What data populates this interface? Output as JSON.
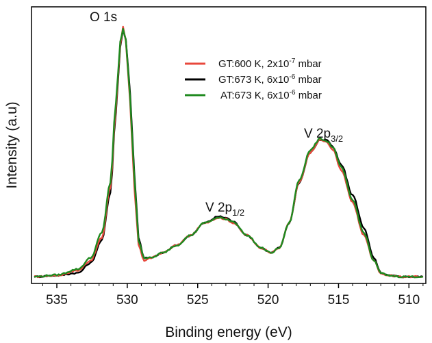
{
  "chart_data": {
    "type": "line",
    "title": "",
    "xlabel": "Binding energy (eV)",
    "ylabel": "Intensity (a.u)",
    "xlim": [
      536.8,
      508.8
    ],
    "ylim": [
      0,
      1.08
    ],
    "x_reversed": true,
    "x_ticks": [
      535,
      530,
      525,
      520,
      515,
      510
    ],
    "x_tick_labels": [
      "535",
      "530",
      "525",
      "520",
      "515",
      "510"
    ],
    "grid": false,
    "legend_position": "upper-middle",
    "annotations": [
      {
        "text": "O 1s",
        "x": 533.0,
        "y": 0.99
      },
      {
        "text": "V 2p",
        "sub": "1/2",
        "x": 523.0,
        "y": 0.27
      },
      {
        "text": "V 2p",
        "sub": "3/2",
        "x": 515.6,
        "y": 0.55
      }
    ],
    "series": [
      {
        "name": "GT:600 K, 2x10",
        "sup": "-7",
        "unit": " mbar",
        "color": "#e8483c",
        "x": [
          536.6,
          535.0,
          533.5,
          532.6,
          531.8,
          531.2,
          530.8,
          530.5,
          530.3,
          530.1,
          529.8,
          529.5,
          529.2,
          528.8,
          528.3,
          527.5,
          526.5,
          525.5,
          524.5,
          523.5,
          523.0,
          522.5,
          521.5,
          520.5,
          519.8,
          519.2,
          518.5,
          517.8,
          517.0,
          516.3,
          515.8,
          515.4,
          514.8,
          514.0,
          513.2,
          512.5,
          512.0,
          511.5,
          510.5,
          509.5,
          509.0
        ],
        "values": [
          0.005,
          0.01,
          0.03,
          0.07,
          0.16,
          0.36,
          0.68,
          0.93,
          1.0,
          0.94,
          0.7,
          0.36,
          0.13,
          0.07,
          0.08,
          0.1,
          0.13,
          0.17,
          0.22,
          0.24,
          0.235,
          0.22,
          0.17,
          0.12,
          0.1,
          0.12,
          0.22,
          0.38,
          0.5,
          0.55,
          0.54,
          0.51,
          0.43,
          0.3,
          0.17,
          0.07,
          0.02,
          0.01,
          0.005,
          0.005,
          0.005
        ]
      },
      {
        "name": "GT:673 K, 6x10",
        "sup": "-6",
        "unit": " mbar",
        "color": "#000000",
        "x": [
          536.6,
          535.0,
          533.5,
          532.6,
          531.8,
          531.2,
          530.8,
          530.5,
          530.3,
          530.1,
          529.8,
          529.5,
          529.2,
          528.8,
          528.3,
          527.5,
          526.5,
          525.5,
          524.5,
          523.5,
          523.0,
          522.5,
          521.5,
          520.5,
          519.8,
          519.2,
          518.5,
          517.8,
          517.0,
          516.3,
          515.8,
          515.4,
          514.8,
          514.0,
          513.2,
          512.5,
          512.0,
          511.5,
          510.5,
          509.5,
          509.0
        ],
        "values": [
          0.005,
          0.01,
          0.02,
          0.06,
          0.15,
          0.34,
          0.66,
          0.92,
          0.99,
          0.95,
          0.74,
          0.42,
          0.16,
          0.08,
          0.08,
          0.1,
          0.13,
          0.17,
          0.22,
          0.245,
          0.24,
          0.225,
          0.17,
          0.12,
          0.1,
          0.12,
          0.22,
          0.38,
          0.5,
          0.55,
          0.55,
          0.52,
          0.45,
          0.33,
          0.2,
          0.08,
          0.02,
          0.01,
          0.005,
          0.005,
          0.005
        ]
      },
      {
        "name": "AT:673 K, 6x10",
        "sup": "-6",
        "unit": " mbar",
        "color": "#1f8a1f",
        "x": [
          536.6,
          535.0,
          533.5,
          532.6,
          531.8,
          531.2,
          530.8,
          530.5,
          530.3,
          530.1,
          529.8,
          529.5,
          529.2,
          528.8,
          528.3,
          527.5,
          526.5,
          525.5,
          524.5,
          523.5,
          523.0,
          522.5,
          521.5,
          520.5,
          519.8,
          519.2,
          518.5,
          517.8,
          517.0,
          516.3,
          515.8,
          515.4,
          514.8,
          514.0,
          513.2,
          512.5,
          512.0,
          511.5,
          510.5,
          509.5,
          509.0
        ],
        "values": [
          0.005,
          0.012,
          0.035,
          0.08,
          0.18,
          0.38,
          0.7,
          0.94,
          0.99,
          0.95,
          0.72,
          0.4,
          0.15,
          0.08,
          0.08,
          0.1,
          0.13,
          0.17,
          0.22,
          0.24,
          0.235,
          0.225,
          0.17,
          0.12,
          0.1,
          0.12,
          0.22,
          0.39,
          0.51,
          0.555,
          0.545,
          0.52,
          0.44,
          0.31,
          0.18,
          0.07,
          0.02,
          0.01,
          0.005,
          0.005,
          0.005
        ]
      }
    ]
  }
}
